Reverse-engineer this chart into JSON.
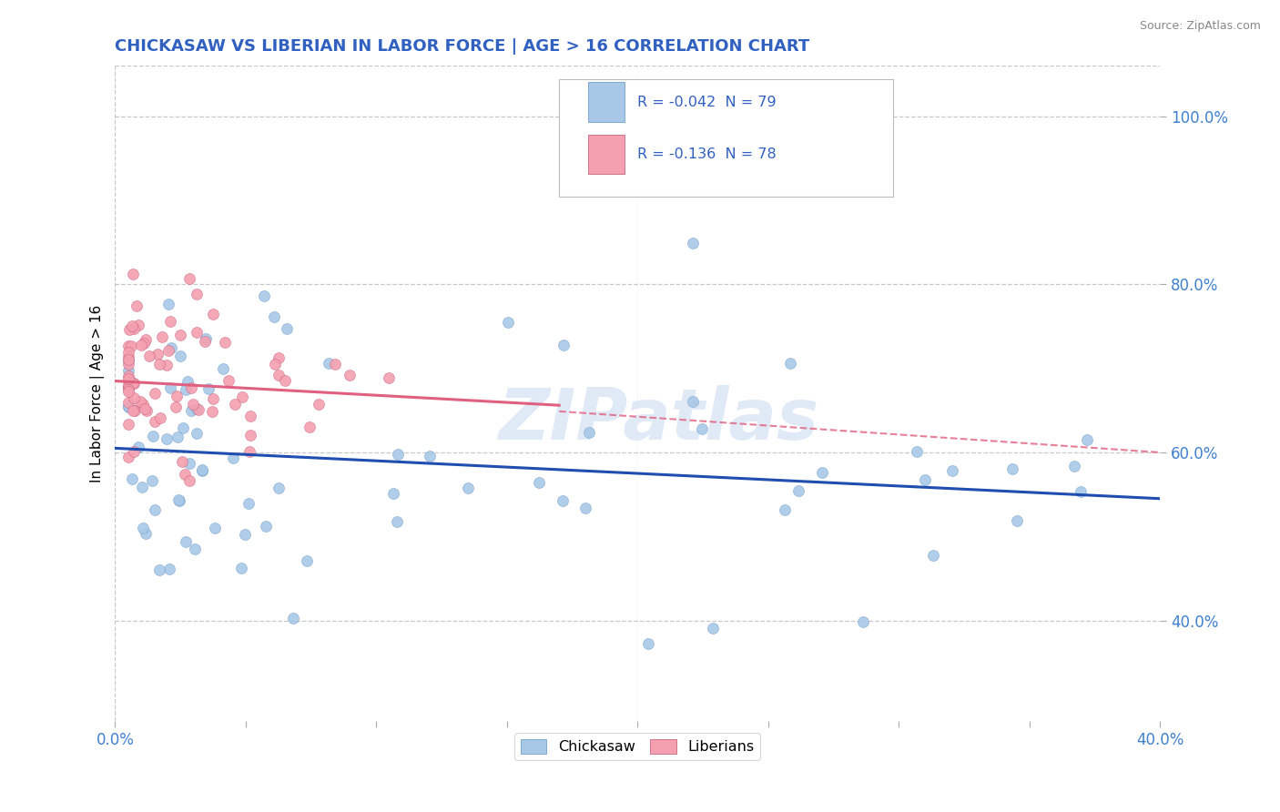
{
  "title": "CHICKASAW VS LIBERIAN IN LABOR FORCE | AGE > 16 CORRELATION CHART",
  "source": "Source: ZipAtlas.com",
  "ylabel": "In Labor Force | Age > 16",
  "xlim": [
    0.0,
    0.4
  ],
  "ylim": [
    0.28,
    1.06
  ],
  "xticks": [
    0.0,
    0.05,
    0.1,
    0.15,
    0.2,
    0.25,
    0.3,
    0.35,
    0.4
  ],
  "yticks": [
    0.4,
    0.6,
    0.8,
    1.0
  ],
  "yticklabels": [
    "40.0%",
    "60.0%",
    "80.0%",
    "100.0%"
  ],
  "chickasaw_color": "#a8c8e8",
  "liberian_color": "#f4a0b0",
  "chickasaw_line_color": "#1f4eb0",
  "liberian_line_color": "#e06080",
  "R_chickasaw": -0.042,
  "N_chickasaw": 79,
  "R_liberian": -0.136,
  "N_liberian": 78,
  "watermark": "ZIPatlas",
  "bg_color": "#ffffff",
  "grid_color": "#c8c8c8",
  "title_color": "#3060c0",
  "axis_color": "#4080d0",
  "legend_text_color": "#3060c0"
}
